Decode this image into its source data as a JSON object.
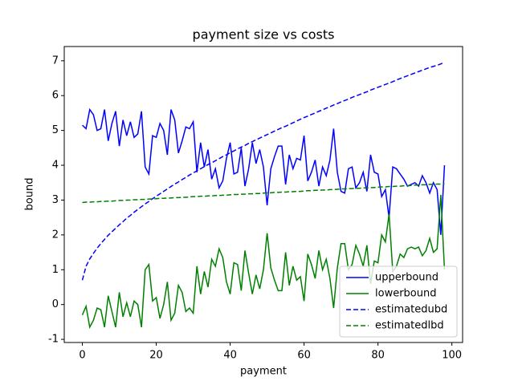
{
  "chart_data": {
    "type": "line",
    "title": "payment size vs costs",
    "xlabel": "payment",
    "ylabel": "bound",
    "x": [
      0,
      1,
      2,
      3,
      4,
      5,
      6,
      7,
      8,
      9,
      10,
      11,
      12,
      13,
      14,
      15,
      16,
      17,
      18,
      19,
      20,
      21,
      22,
      23,
      24,
      25,
      26,
      27,
      28,
      29,
      30,
      31,
      32,
      33,
      34,
      35,
      36,
      37,
      38,
      39,
      40,
      41,
      42,
      43,
      44,
      45,
      46,
      47,
      48,
      49,
      50,
      51,
      52,
      53,
      54,
      55,
      56,
      57,
      58,
      59,
      60,
      61,
      62,
      63,
      64,
      65,
      66,
      67,
      68,
      69,
      70,
      71,
      72,
      73,
      74,
      75,
      76,
      77,
      78,
      79,
      80,
      81,
      82,
      83,
      84,
      85,
      86,
      87,
      88,
      89,
      90,
      91,
      92,
      93,
      94,
      95,
      96,
      97,
      98
    ],
    "series": [
      {
        "name": "upperbound",
        "color": "#0000ff",
        "linestyle": "solid",
        "values": [
          5.15,
          5.05,
          5.6,
          5.45,
          5.0,
          5.05,
          5.6,
          4.7,
          5.2,
          5.55,
          4.55,
          5.3,
          4.85,
          5.25,
          4.8,
          4.9,
          5.55,
          3.95,
          3.75,
          4.85,
          4.8,
          5.2,
          5.0,
          4.3,
          5.6,
          5.3,
          4.35,
          4.7,
          5.1,
          5.05,
          5.25,
          3.8,
          4.65,
          3.95,
          4.45,
          3.6,
          3.9,
          3.35,
          3.55,
          4.2,
          4.65,
          3.75,
          3.8,
          4.5,
          3.4,
          3.9,
          4.65,
          4.05,
          4.45,
          3.95,
          2.85,
          3.9,
          4.25,
          4.55,
          4.55,
          3.45,
          4.3,
          3.9,
          4.2,
          4.15,
          4.85,
          3.55,
          3.8,
          4.15,
          3.4,
          3.95,
          3.7,
          4.15,
          5.05,
          3.8,
          3.25,
          3.2,
          3.9,
          3.95,
          3.35,
          3.5,
          3.8,
          3.25,
          4.3,
          3.8,
          3.75,
          3.1,
          3.3,
          2.5,
          3.95,
          3.9,
          3.75,
          3.6,
          3.4,
          3.45,
          3.5,
          3.4,
          3.7,
          3.5,
          3.2,
          3.5,
          3.3,
          2.0,
          4.0
        ]
      },
      {
        "name": "lowerbound",
        "color": "#008000",
        "linestyle": "solid",
        "values": [
          -0.3,
          -0.05,
          -0.65,
          -0.45,
          -0.1,
          -0.15,
          -0.65,
          0.25,
          -0.2,
          -0.65,
          0.35,
          -0.35,
          0.05,
          -0.35,
          0.1,
          0.0,
          -0.65,
          1.0,
          1.15,
          0.1,
          0.2,
          -0.4,
          0.0,
          0.65,
          -0.45,
          -0.25,
          0.55,
          0.35,
          -0.2,
          -0.1,
          -0.25,
          1.1,
          0.3,
          0.95,
          0.5,
          1.3,
          1.1,
          1.6,
          1.35,
          0.65,
          0.3,
          1.2,
          1.15,
          0.4,
          1.55,
          0.9,
          0.3,
          0.85,
          0.45,
          1.0,
          2.05,
          1.05,
          0.7,
          0.4,
          0.4,
          1.5,
          0.55,
          1.1,
          0.7,
          0.8,
          0.1,
          1.45,
          1.15,
          0.75,
          1.55,
          1.0,
          1.3,
          0.75,
          -0.1,
          1.05,
          1.75,
          1.75,
          1.0,
          1.15,
          1.7,
          1.45,
          1.1,
          1.7,
          0.6,
          1.25,
          1.2,
          2.0,
          1.8,
          2.6,
          0.95,
          1.1,
          1.45,
          1.35,
          1.6,
          1.65,
          1.6,
          1.65,
          1.4,
          1.55,
          1.9,
          1.5,
          1.6,
          3.15,
          1.0
        ]
      },
      {
        "name": "estimatedubd",
        "color": "#0000ff",
        "linestyle": "dashed",
        "values": [
          0.7,
          1.1,
          1.31,
          1.47,
          1.62,
          1.75,
          1.87,
          1.99,
          2.09,
          2.19,
          2.29,
          2.38,
          2.48,
          2.56,
          2.65,
          2.73,
          2.81,
          2.89,
          2.96,
          3.04,
          3.11,
          3.18,
          3.25,
          3.32,
          3.39,
          3.46,
          3.52,
          3.59,
          3.65,
          3.72,
          3.78,
          3.84,
          3.9,
          3.96,
          4.02,
          4.07,
          4.13,
          4.19,
          4.25,
          4.3,
          4.36,
          4.41,
          4.47,
          4.52,
          4.57,
          4.63,
          4.68,
          4.73,
          4.78,
          4.83,
          4.88,
          4.93,
          4.98,
          5.03,
          5.08,
          5.12,
          5.17,
          5.22,
          5.27,
          5.32,
          5.37,
          5.41,
          5.46,
          5.5,
          5.55,
          5.59,
          5.64,
          5.68,
          5.73,
          5.77,
          5.82,
          5.86,
          5.9,
          5.95,
          5.99,
          6.03,
          6.07,
          6.11,
          6.16,
          6.2,
          6.24,
          6.28,
          6.32,
          6.36,
          6.4,
          6.45,
          6.49,
          6.53,
          6.57,
          6.61,
          6.65,
          6.69,
          6.73,
          6.77,
          6.81,
          6.84,
          6.87,
          6.91,
          6.96
        ]
      },
      {
        "name": "estimatedlbd",
        "color": "#008000",
        "linestyle": "dashed",
        "values": [
          2.93,
          2.94,
          2.94,
          2.95,
          2.95,
          2.96,
          2.96,
          2.97,
          2.97,
          2.98,
          2.99,
          2.99,
          3.0,
          3.0,
          3.01,
          3.01,
          3.02,
          3.02,
          3.03,
          3.03,
          3.04,
          3.05,
          3.05,
          3.06,
          3.06,
          3.07,
          3.07,
          3.08,
          3.08,
          3.09,
          3.1,
          3.1,
          3.11,
          3.11,
          3.12,
          3.12,
          3.13,
          3.13,
          3.14,
          3.14,
          3.15,
          3.16,
          3.16,
          3.17,
          3.17,
          3.18,
          3.18,
          3.19,
          3.19,
          3.2,
          3.21,
          3.21,
          3.22,
          3.22,
          3.23,
          3.23,
          3.24,
          3.24,
          3.25,
          3.25,
          3.26,
          3.27,
          3.27,
          3.28,
          3.28,
          3.29,
          3.29,
          3.3,
          3.3,
          3.31,
          3.32,
          3.32,
          3.33,
          3.33,
          3.34,
          3.34,
          3.35,
          3.35,
          3.36,
          3.36,
          3.37,
          3.38,
          3.38,
          3.39,
          3.39,
          3.4,
          3.4,
          3.41,
          3.41,
          3.42,
          3.43,
          3.43,
          3.44,
          3.44,
          3.45,
          3.45,
          3.46,
          3.46,
          3.47
        ]
      }
    ],
    "xlim": [
      -4.9,
      102.9
    ],
    "xticks": [
      0,
      20,
      40,
      60,
      80,
      100
    ],
    "ylim": [
      -1.09,
      7.41
    ],
    "yticks": [
      -1,
      0,
      1,
      2,
      3,
      4,
      5,
      6,
      7
    ],
    "grid": false,
    "legend": "lower right"
  }
}
